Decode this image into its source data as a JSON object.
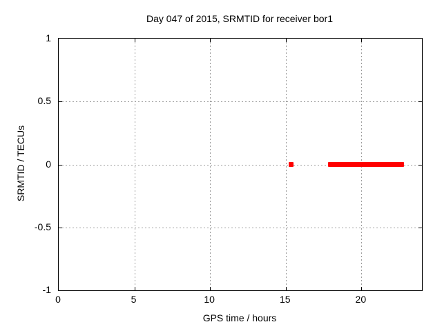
{
  "chart_data": {
    "type": "scatter",
    "title": "Day 047 of 2015, SRMTID for receiver bor1",
    "xlabel": "GPS time / hours",
    "ylabel": "SRMTID / TECUs",
    "xlim": [
      0,
      24
    ],
    "ylim": [
      -1,
      1
    ],
    "xticks": [
      0,
      5,
      10,
      15,
      20
    ],
    "yticks": [
      -1,
      -0.5,
      0,
      0.5,
      1
    ],
    "grid": true,
    "legend": "none",
    "marker": "filled-square",
    "marker_size_px": 7,
    "series": [
      {
        "name": "SRMTID",
        "color": "#ff0000",
        "y": 0,
        "segments": [
          {
            "x_from": 15.2,
            "x_to": 15.5
          },
          {
            "x_from": 17.8,
            "x_to": 22.8
          }
        ]
      }
    ],
    "colors": {
      "background": "#ffffff",
      "border": "#000000",
      "grid": "#9c9c9c",
      "text": "#000000",
      "data": "#ff0000"
    }
  }
}
